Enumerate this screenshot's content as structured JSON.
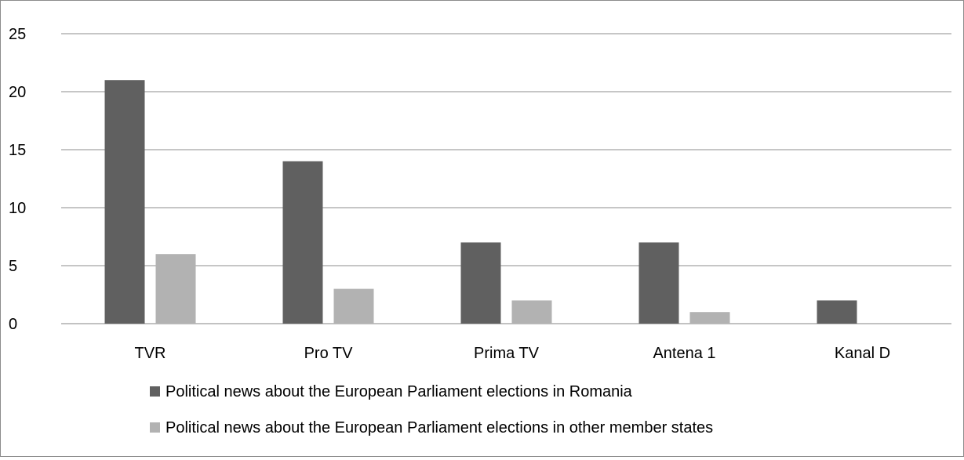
{
  "chart_data": {
    "type": "bar",
    "title": "",
    "xlabel": "",
    "ylabel": "",
    "categories": [
      "TVR",
      "Pro TV",
      "Prima TV",
      "Antena 1",
      "Kanal D"
    ],
    "series": [
      {
        "name": "Political news about the European Parliament elections in Romania",
        "values": [
          21,
          14,
          7,
          7,
          2
        ],
        "color": "#606060"
      },
      {
        "name": "Political news about the European Parliament elections in other member states",
        "values": [
          6,
          3,
          2,
          1,
          0
        ],
        "color": "#b2b2b2"
      }
    ],
    "ylim": [
      0,
      25
    ],
    "yticks": [
      "0",
      "5",
      "10",
      "15",
      "20",
      "25"
    ],
    "grid": true,
    "legend_position": "bottom-left"
  }
}
